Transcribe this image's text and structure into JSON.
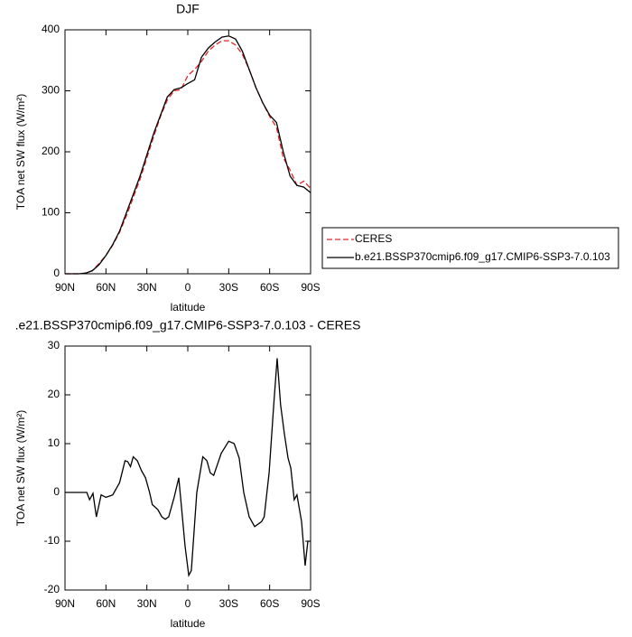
{
  "chart_data": [
    {
      "type": "line",
      "title": "DJF",
      "xlabel": "latitude",
      "ylabel": "TOA net SW flux (W/m²)",
      "x": [
        90,
        85,
        80,
        75,
        70,
        65,
        60,
        55,
        50,
        45,
        40,
        35,
        30,
        25,
        20,
        15,
        10,
        5,
        0,
        -5,
        -10,
        -15,
        -20,
        -25,
        -30,
        -35,
        -40,
        -45,
        -50,
        -55,
        -60,
        -65,
        -70,
        -75,
        -80,
        -85,
        -90
      ],
      "series": [
        {
          "name": "CERES",
          "color": "#e0262b",
          "dash": true,
          "values": [
            0,
            0,
            0,
            1,
            5,
            17,
            30,
            47,
            68,
            95,
            125,
            155,
            190,
            225,
            258,
            285,
            300,
            302,
            325,
            335,
            348,
            365,
            375,
            382,
            382,
            375,
            360,
            335,
            305,
            280,
            258,
            240,
            190,
            170,
            145,
            152,
            140
          ]
        },
        {
          "name": "b.e21.BSSP370cmip6.f09_g17.CMIP6-SSP3-7.0.103",
          "color": "#000000",
          "dash": false,
          "values": [
            0,
            0,
            0,
            1,
            5,
            15,
            30,
            48,
            70,
            100,
            130,
            160,
            195,
            230,
            260,
            290,
            302,
            305,
            312,
            318,
            355,
            370,
            380,
            388,
            390,
            385,
            365,
            335,
            305,
            280,
            260,
            248,
            200,
            160,
            145,
            142,
            133
          ]
        }
      ],
      "xlim": [
        90,
        -90
      ],
      "xticks": [
        {
          "value": 90,
          "label": "90N"
        },
        {
          "value": 60,
          "label": "60N"
        },
        {
          "value": 30,
          "label": "30N"
        },
        0,
        {
          "value": -30,
          "label": "30S"
        },
        {
          "value": -60,
          "label": "60S"
        },
        {
          "value": -90,
          "label": "90S"
        }
      ],
      "ylim": [
        0,
        400
      ],
      "yticks": [
        0,
        100,
        200,
        300,
        400
      ]
    },
    {
      "type": "line",
      "title": ".e21.BSSP370cmip6.f09_g17.CMIP6-SSP3-7.0.103 - CERES",
      "xlabel": "latitude",
      "ylabel": "TOA net SW flux (W/m²)",
      "x": [
        90,
        85,
        80,
        74,
        72,
        69.5,
        67,
        63.5,
        60,
        55,
        50,
        46,
        44,
        42,
        40,
        37,
        34,
        31,
        28,
        26,
        22,
        19,
        16.5,
        14,
        10,
        6.6,
        2,
        -0.7,
        -2.6,
        -6.6,
        -11,
        -14,
        -16.5,
        -19,
        -24.5,
        -30,
        -34,
        -37.7,
        -41,
        -45,
        -49,
        -54,
        -56,
        -59.6,
        -63,
        -65.5,
        -68,
        -70.8,
        -73.5,
        -75.5,
        -78,
        -80,
        -83.4,
        -86,
        -88,
        -90
      ],
      "values": [
        0,
        0,
        0,
        0,
        -1.5,
        -0.2,
        -5,
        -0.5,
        -1,
        -0.5,
        2,
        6.5,
        6.3,
        5.3,
        7.3,
        6.5,
        4.5,
        3,
        0,
        -2.5,
        -3.5,
        -5,
        -5.5,
        -5,
        -1,
        3,
        -11,
        -17,
        -16,
        0,
        7.3,
        6.5,
        4,
        3.5,
        8,
        10.5,
        10,
        7,
        0,
        -5,
        -7,
        -6,
        -5,
        4,
        18,
        27.5,
        18,
        12,
        7,
        5,
        -1.5,
        -0.5,
        -6,
        -15,
        -10,
        -10
      ],
      "color": "#000000",
      "xlim": [
        90,
        -90
      ],
      "xticks": [
        {
          "value": 90,
          "label": "90N"
        },
        {
          "value": 60,
          "label": "60N"
        },
        {
          "value": 30,
          "label": "30N"
        },
        0,
        {
          "value": -30,
          "label": "30S"
        },
        {
          "value": -60,
          "label": "60S"
        },
        {
          "value": -90,
          "label": "90S"
        }
      ],
      "ylim": [
        -20,
        30
      ],
      "yticks": [
        -20,
        -10,
        0,
        10,
        20,
        30
      ]
    }
  ]
}
